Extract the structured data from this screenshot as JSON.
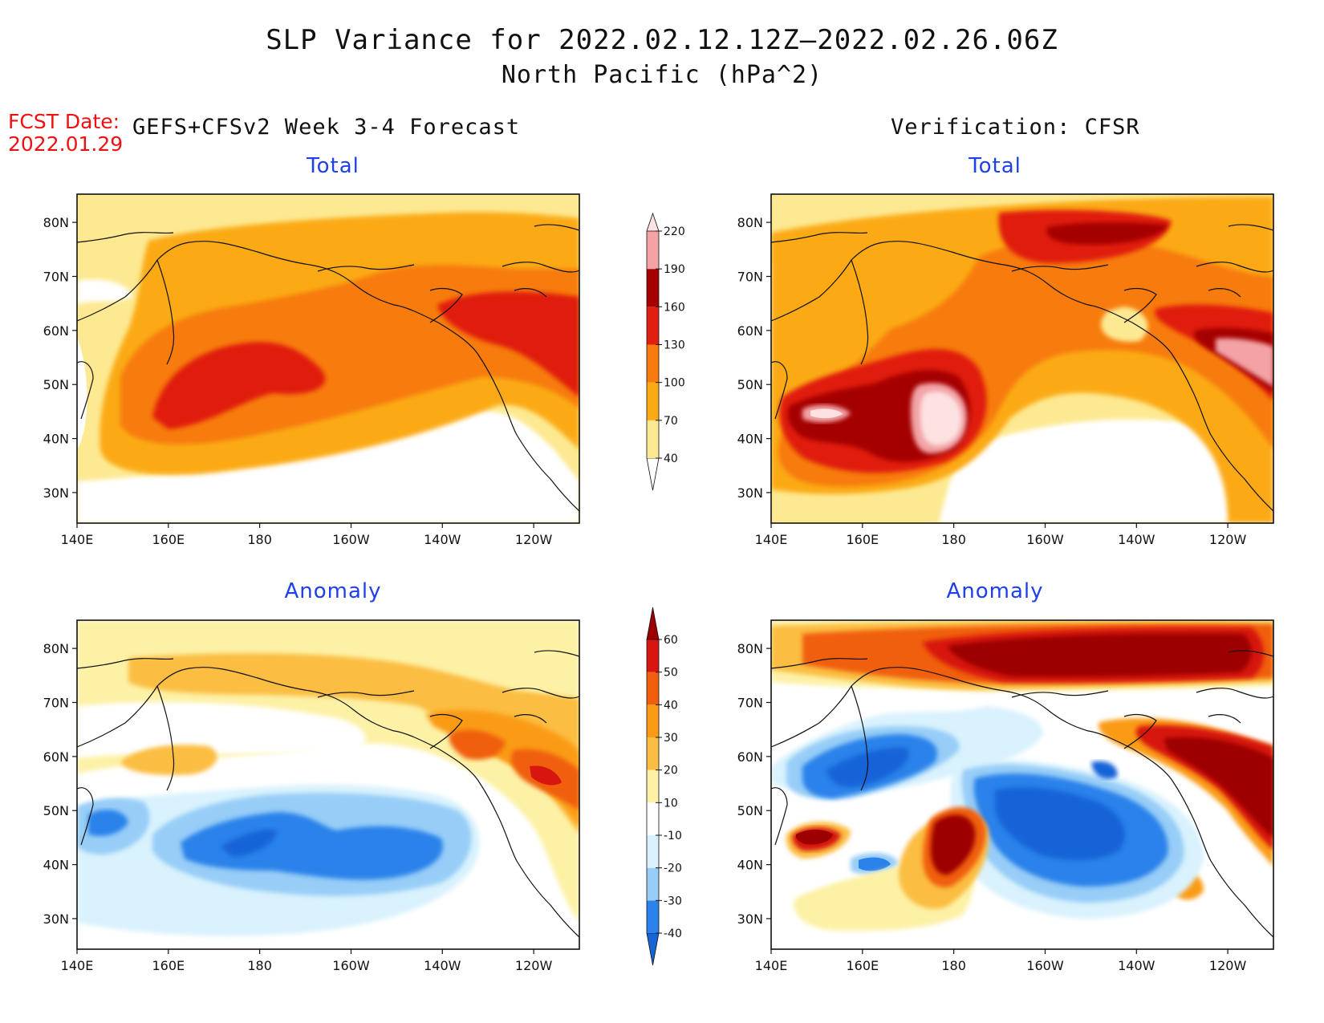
{
  "title": {
    "line1": "SLP Variance for 2022.02.12.12Z–2022.02.26.06Z",
    "line2": "North Pacific (hPa^2)"
  },
  "fcst_date": {
    "label": "FCST Date:",
    "value": "2022.01.29"
  },
  "columns": {
    "left": "GEFS+CFSv2 Week 3-4 Forecast",
    "right": "Verification: CFSR"
  },
  "panels": {
    "top_left": "Total",
    "top_right": "Total",
    "bottom_left": "Anomaly",
    "bottom_right": "Anomaly"
  },
  "axes": {
    "lon_ticks": [
      "140E",
      "160E",
      "180",
      "160W",
      "140W",
      "120W"
    ],
    "lat_ticks": [
      "80N",
      "70N",
      "60N",
      "50N",
      "40N",
      "30N"
    ]
  },
  "colorbar_total": {
    "levels": [
      "40",
      "70",
      "100",
      "130",
      "160",
      "190",
      "220"
    ],
    "colors": [
      "#fde992",
      "#fbaa13",
      "#f77b0f",
      "#e01f10",
      "#a50000",
      "#f3a3a6",
      "#fde2e2"
    ]
  },
  "colorbar_anomaly": {
    "levels": [
      "-40",
      "-30",
      "-20",
      "-10",
      "10",
      "20",
      "30",
      "40",
      "50",
      "60"
    ],
    "colors": [
      "#1764d8",
      "#2a82ea",
      "#97cdf7",
      "#d9f2fd",
      "#ffffff",
      "#fdf1a6",
      "#fbbd43",
      "#fa9b13",
      "#f05e0e",
      "#d7170f",
      "#9c0000"
    ]
  }
}
